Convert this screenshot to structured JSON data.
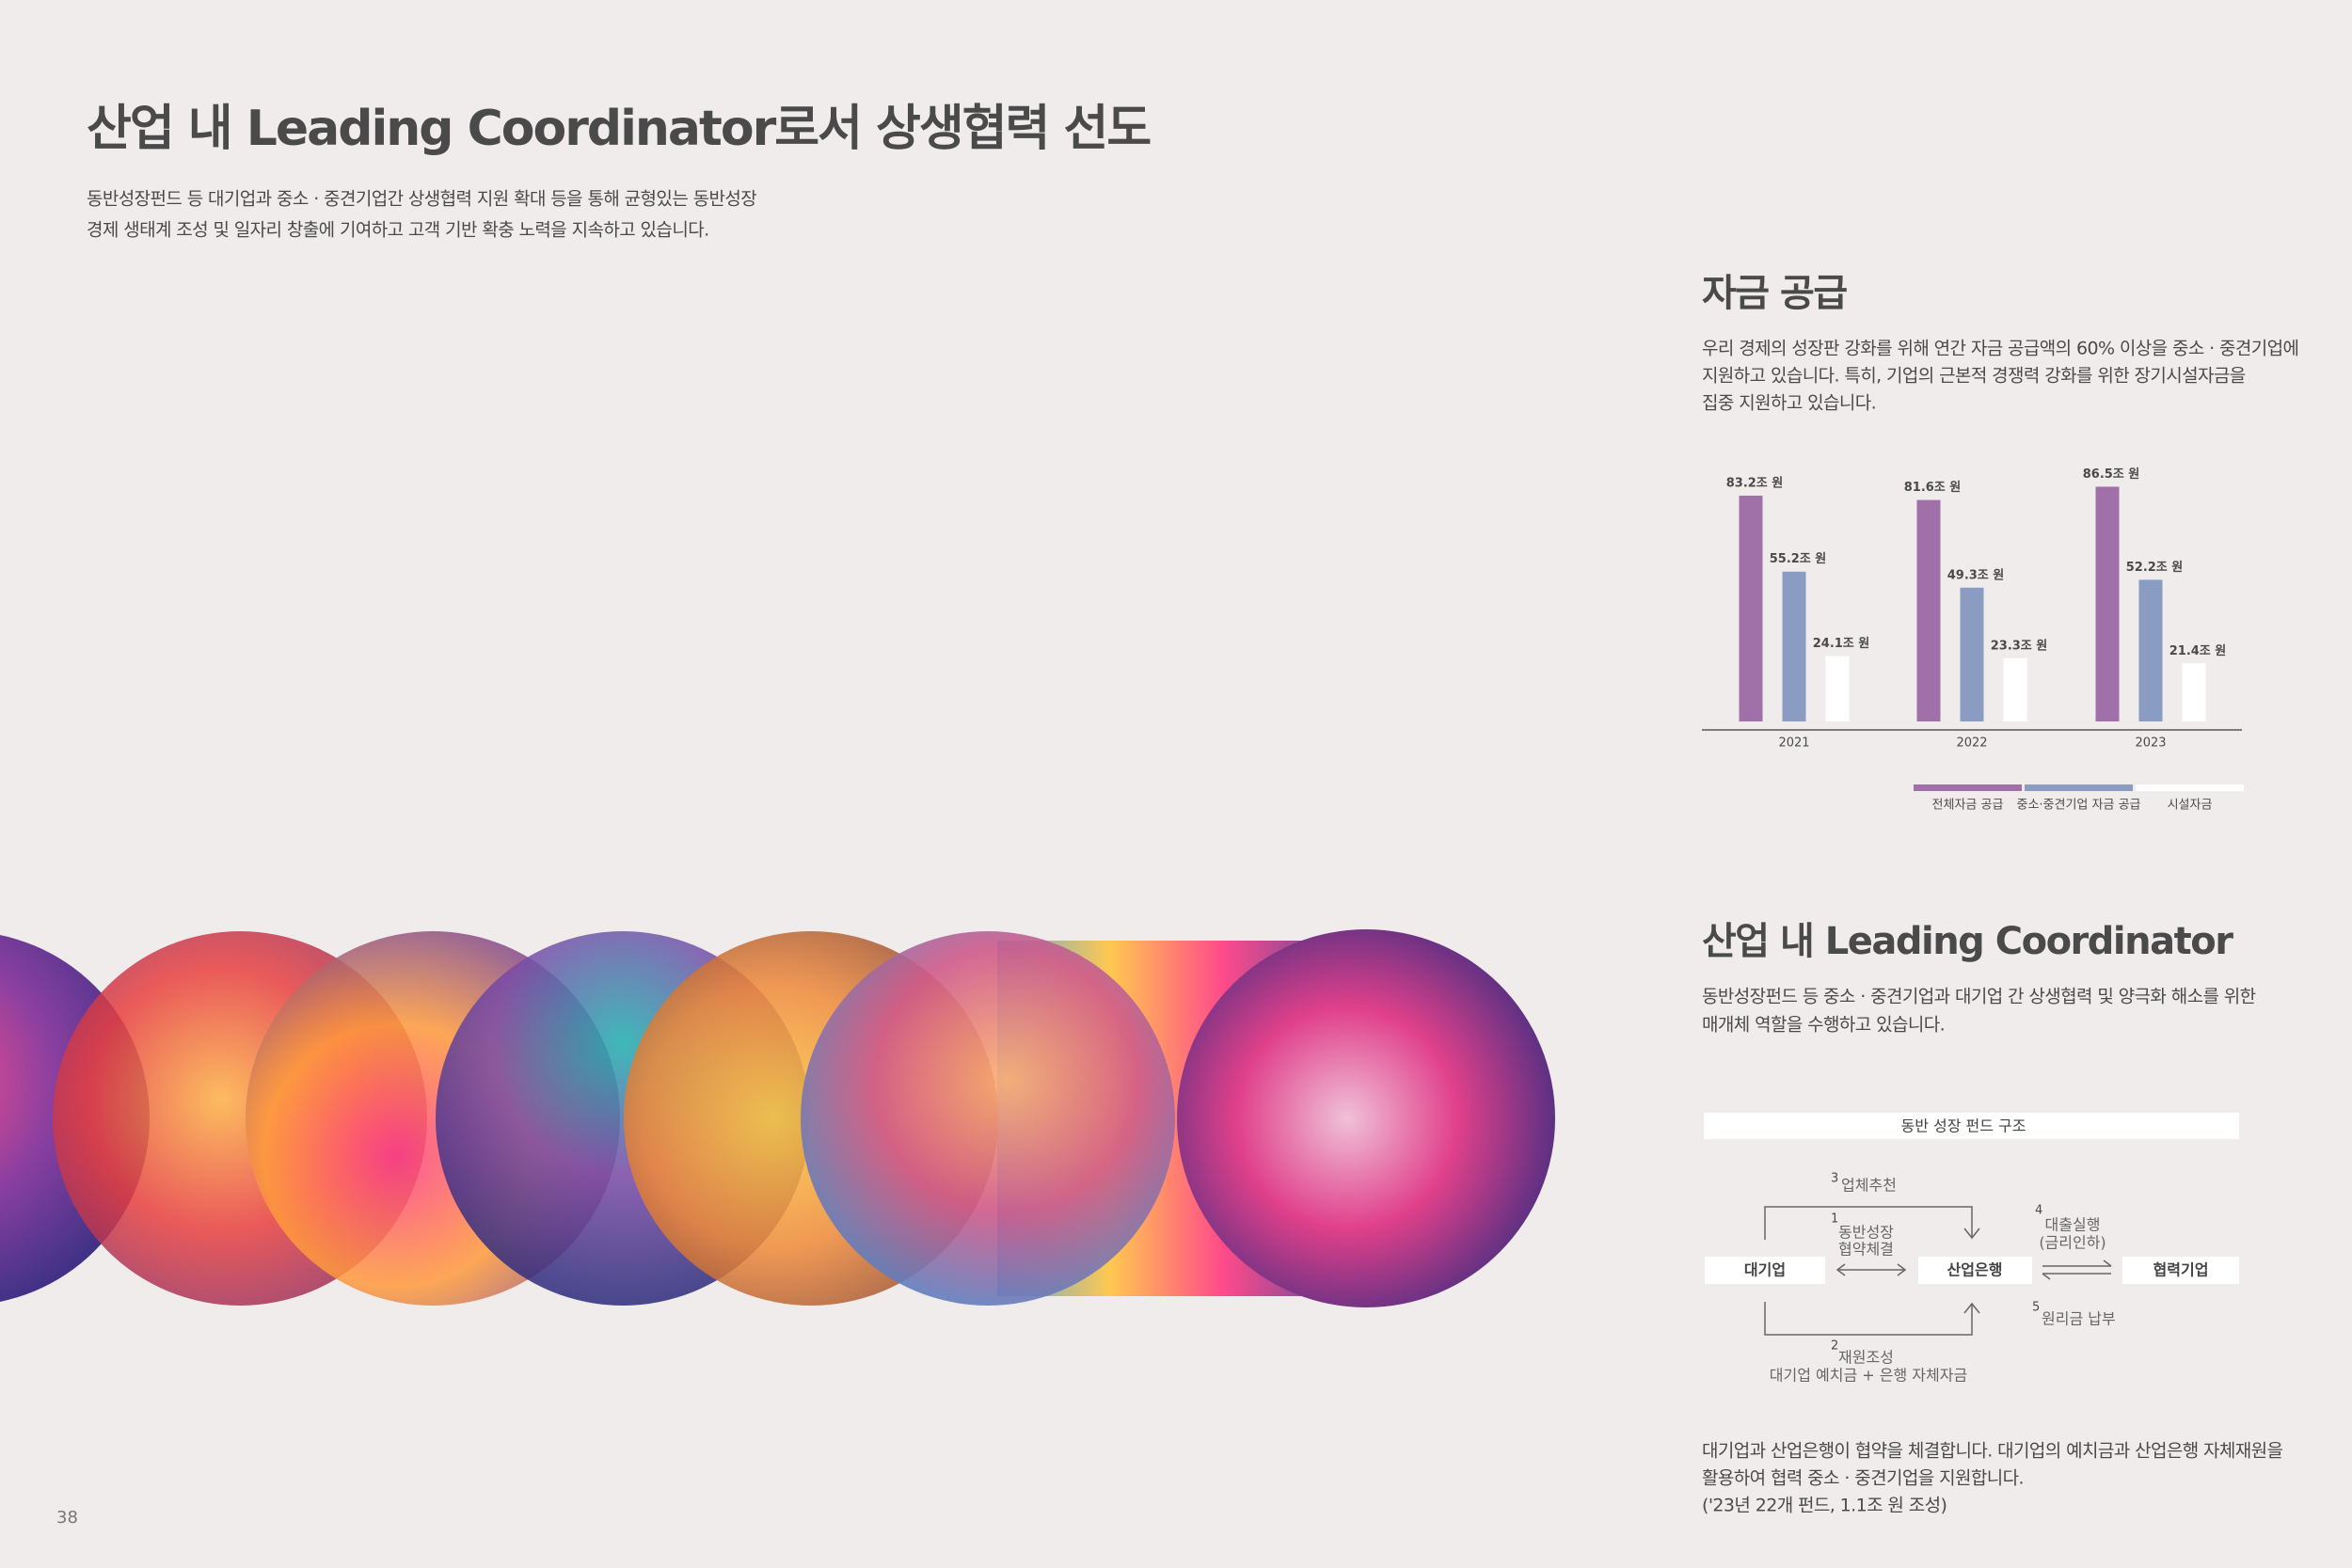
{
  "header": {
    "title": "산업 내 Leading Coordinator로서 상생협력 선도",
    "description": [
      "동반성장펀드 등 대기업과 중소 · 중견기업간 상생협력 지원 확대 등을 통해 균형있는 동반성장",
      "경제 생태계 조성 및 일자리 창출에 기여하고 고객 기반 확충 노력을 지속하고 있습니다."
    ]
  },
  "funding": {
    "title": "자금 공급",
    "description": [
      "우리 경제의 성장판 강화를 위해 연간 자금 공급액의 60% 이상을 중소 · 중견기업에",
      "지원하고 있습니다. 특히, 기업의 근본적 경쟁력 강화를 위한 장기시설자금을",
      "집중 지원하고 있습니다."
    ]
  },
  "chart_data": {
    "type": "bar",
    "categories": [
      "2021",
      "2022",
      "2023"
    ],
    "series": [
      {
        "name": "전체자금 공급",
        "color": "#a070a8",
        "values": [
          83.2,
          81.6,
          86.5
        ],
        "value_labels": [
          "83.2조 원",
          "81.6조 원",
          "86.5조 원"
        ]
      },
      {
        "name": "중소·중견기업 자금 공급",
        "color": "#8b9cc3",
        "values": [
          55.2,
          49.3,
          52.2
        ],
        "value_labels": [
          "55.2조 원",
          "49.3조 원",
          "52.2조 원"
        ]
      },
      {
        "name": "시설자금",
        "color": "#ffffff",
        "values": [
          24.1,
          23.3,
          21.4
        ],
        "value_labels": [
          "24.1조 원",
          "23.3조 원",
          "21.4조 원"
        ]
      }
    ]
  },
  "coordinator": {
    "title": "산업 내 Leading Coordinator",
    "description": [
      "동반성장펀드 등 중소 · 중견기업과 대기업 간 상생협력 및 양극화 해소를 위한",
      "매개체 역할을 수행하고 있습니다."
    ],
    "diagram": {
      "title": "동반 성장 펀드 구조",
      "nodes": [
        "대기업",
        "산업은행",
        "협력기업"
      ],
      "steps": [
        {
          "number": "1",
          "lines": [
            "동반성장",
            "협약체결"
          ]
        },
        {
          "number": "2",
          "lines": [
            "재원조성",
            "대기업 예치금 + 은행 자체자금"
          ]
        },
        {
          "number": "3",
          "lines": [
            "업체추천"
          ]
        },
        {
          "number": "4",
          "lines": [
            "대출실행",
            "(금리인하)"
          ]
        },
        {
          "number": "5",
          "lines": [
            "원리금 납부"
          ]
        }
      ]
    },
    "note": [
      "대기업과 산업은행이 협약을 체결합니다. 대기업의 예치금과 산업은행 자체재원을",
      "활용하여 협력 중소 · 중견기업을 지원합니다.",
      "('23년 22개 펀드, 1.1조 원 조성)"
    ]
  },
  "page_number": "38"
}
